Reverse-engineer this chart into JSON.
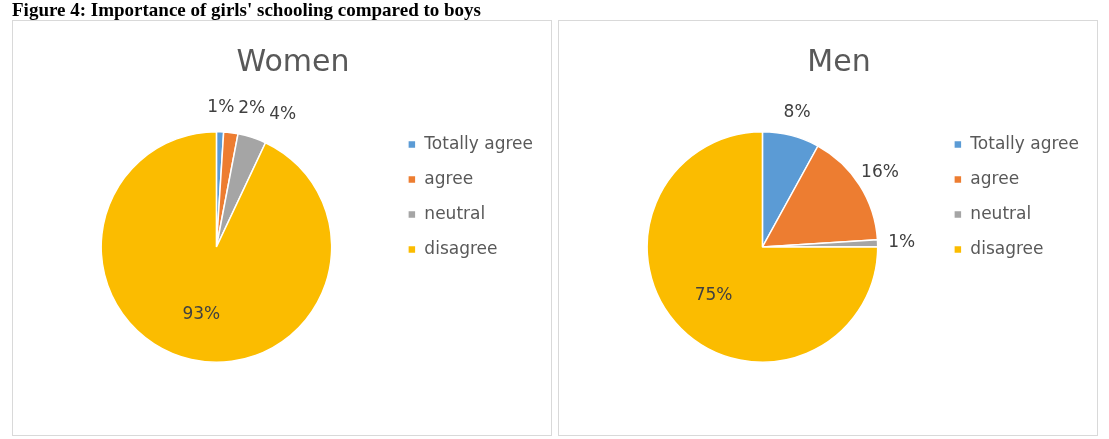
{
  "chart_data": [
    {
      "type": "pie",
      "title": "Women",
      "annotations": [
        "Figure 4: Importance of girls' schooling compared to boys"
      ],
      "categories": [
        "Totally agree",
        "agree",
        "neutral",
        "disagree"
      ],
      "values": [
        1,
        2,
        4,
        93
      ],
      "value_labels": [
        "1%",
        "2%",
        "4%",
        "93%"
      ],
      "colors": [
        "#5b9bd5",
        "#ed7d31",
        "#a5a5a5",
        "#fbbc00"
      ],
      "legend": "right"
    },
    {
      "type": "pie",
      "title": "Men",
      "categories": [
        "Totally agree",
        "agree",
        "neutral",
        "disagree"
      ],
      "values": [
        8,
        16,
        1,
        75
      ],
      "value_labels": [
        "8%",
        "16%",
        "1%",
        "75%"
      ],
      "colors": [
        "#5b9bd5",
        "#ed7d31",
        "#a5a5a5",
        "#fbbc00"
      ],
      "legend": "right"
    }
  ]
}
